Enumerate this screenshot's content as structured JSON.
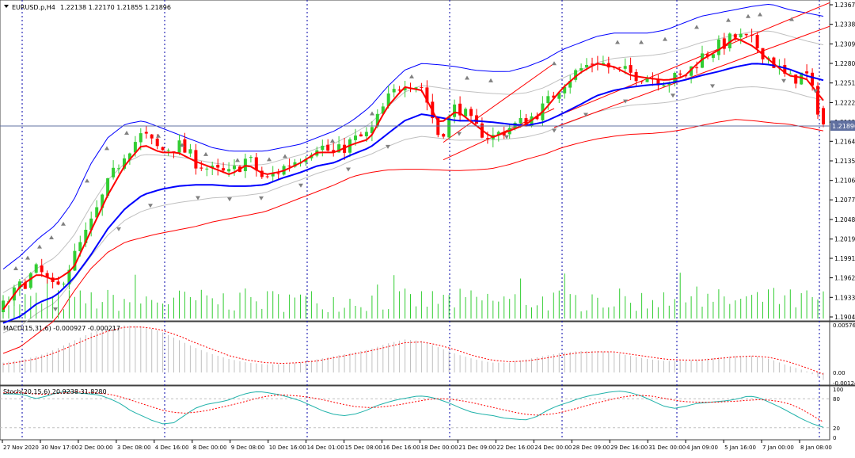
{
  "main": {
    "symbol_label": "EURUSD.p,H4",
    "ohlc_label": "1.22138 1.22170 1.21855 1.21896",
    "price_ticks": [
      "1.23670",
      "1.23380",
      "1.23090",
      "1.22800",
      "1.22510",
      "1.22220",
      "1.21930",
      "1.21645",
      "1.21355",
      "1.21065",
      "1.20777",
      "1.20485",
      "1.20195",
      "1.19910",
      "1.19620",
      "1.19330",
      "1.19040"
    ],
    "current_price": "1.21896"
  },
  "macd": {
    "label": "MACD(15,31,6) -0.000927 -0.000217",
    "ticks": [
      "0.005765",
      "0.00",
      "-0.00124"
    ]
  },
  "stoch": {
    "label": "Stoch(20,15,6) 20.9238 31.8280",
    "ticks": [
      "100",
      "80",
      "20",
      "0"
    ]
  },
  "time_axis": [
    "27 Nov 2020",
    "30 Nov 17:00",
    "2 Dec 00:00",
    "3 Dec 08:00",
    "4 Dec 16:00",
    "8 Dec 00:00",
    "9 Dec 08:00",
    "10 Dec 16:00",
    "14 Dec 01:00",
    "15 Dec 08:00",
    "16 Dec 16:00",
    "18 Dec 00:00",
    "21 Dec 09:00",
    "22 Dec 16:00",
    "24 Dec 00:00",
    "28 Dec 09:00",
    "29 Dec 16:00",
    "31 Dec 00:00",
    "4 Jan 09:00",
    "5 Jan 16:00",
    "7 Jan 00:00",
    "8 Jan 08:00"
  ],
  "colors": {
    "bull": "#32CD32",
    "bear": "#FF0000",
    "ma_fast": "#FF0000",
    "ma_slow": "#0000FF",
    "band_upper": "#0000FF",
    "band_lower": "#FF0000",
    "band_inner": "#C0C0C0",
    "volume": "#32CD32",
    "macd_hist": "#C0C0C0",
    "macd_signal": "#FF0000",
    "stoch_main": "#20B2AA",
    "stoch_signal": "#FF0000",
    "grid": "#0000AA",
    "price_line": "#6070A0"
  },
  "chart_data": [
    {
      "type": "candlestick",
      "name": "EURUSD.p,H4",
      "ylim": [
        1.1904,
        1.2367
      ],
      "y_ticks": [
        1.2367,
        1.2338,
        1.2309,
        1.228,
        1.2251,
        1.2222,
        1.2193,
        1.21645,
        1.21355,
        1.21065,
        1.20777,
        1.20485,
        1.20195,
        1.1991,
        1.1962,
        1.1933,
        1.1904
      ],
      "last": {
        "open": 1.22138,
        "high": 1.2217,
        "low": 1.21855,
        "close": 1.21896
      },
      "anchors_close": [
        1.192,
        1.195,
        1.1975,
        1.194,
        1.199,
        1.204,
        1.21,
        1.215,
        1.2175,
        1.215,
        1.216,
        1.2135,
        1.212,
        1.2115,
        1.214,
        1.2105,
        1.2125,
        1.214,
        1.216,
        1.2145,
        1.2165,
        1.2175,
        1.2225,
        1.2255,
        1.2245,
        1.217,
        1.222,
        1.2185,
        1.217,
        1.2185,
        1.2195,
        1.2215,
        1.225,
        1.227,
        1.2285,
        1.227,
        1.2265,
        1.226,
        1.2255,
        1.226,
        1.229,
        1.2305,
        1.232,
        1.231,
        1.2285,
        1.2255,
        1.2265,
        1.219
      ],
      "fast_ma_anchors": [
        1.1915,
        1.195,
        1.1968,
        1.1958,
        1.1975,
        1.203,
        1.2085,
        1.213,
        1.216,
        1.2148,
        1.2148,
        1.2135,
        1.2125,
        1.2115,
        1.213,
        1.2115,
        1.212,
        1.2132,
        1.2148,
        1.2148,
        1.216,
        1.2168,
        1.2215,
        1.2245,
        1.224,
        1.219,
        1.221,
        1.219,
        1.217,
        1.218,
        1.219,
        1.221,
        1.2242,
        1.2265,
        1.228,
        1.2275,
        1.2262,
        1.2258,
        1.2255,
        1.226,
        1.2285,
        1.23,
        1.2318,
        1.2305,
        1.2283,
        1.2262,
        1.2258,
        1.2225
      ],
      "slow_ma_anchors": [
        1.1895,
        1.1905,
        1.1925,
        1.1935,
        1.196,
        1.1995,
        1.2035,
        1.2065,
        1.2085,
        1.2093,
        1.2098,
        1.21,
        1.21,
        1.2098,
        1.2098,
        1.21,
        1.211,
        1.2118,
        1.2128,
        1.2133,
        1.2145,
        1.2155,
        1.2175,
        1.2195,
        1.2205,
        1.22,
        1.2195,
        1.2195,
        1.2193,
        1.219,
        1.2188,
        1.2193,
        1.2205,
        1.2218,
        1.2232,
        1.224,
        1.2245,
        1.2248,
        1.225,
        1.2255,
        1.2262,
        1.2268,
        1.2275,
        1.228,
        1.2278,
        1.2272,
        1.2262,
        1.2255
      ],
      "upper_band_anchors": [
        1.1975,
        1.1995,
        1.202,
        1.204,
        1.2075,
        1.213,
        1.217,
        1.219,
        1.2195,
        1.2185,
        1.2175,
        1.2165,
        1.2155,
        1.215,
        1.215,
        1.215,
        1.2155,
        1.216,
        1.217,
        1.218,
        1.2195,
        1.2215,
        1.2245,
        1.227,
        1.228,
        1.2278,
        1.2275,
        1.227,
        1.2268,
        1.2268,
        1.2275,
        1.2285,
        1.23,
        1.231,
        1.232,
        1.2325,
        1.2325,
        1.2325,
        1.233,
        1.234,
        1.235,
        1.2355,
        1.236,
        1.2365,
        1.2368,
        1.236,
        1.2355,
        1.235
      ],
      "lower_band_anchors": [
        1.185,
        1.186,
        1.188,
        1.19,
        1.194,
        1.1975,
        1.2,
        1.2015,
        1.2022,
        1.2028,
        1.2033,
        1.2038,
        1.2045,
        1.205,
        1.2055,
        1.206,
        1.207,
        1.208,
        1.209,
        1.21,
        1.2112,
        1.2118,
        1.2122,
        1.2123,
        1.2123,
        1.2122,
        1.2121,
        1.2122,
        1.2124,
        1.213,
        1.2138,
        1.2145,
        1.2155,
        1.2162,
        1.2168,
        1.2172,
        1.2175,
        1.2176,
        1.2178,
        1.2182,
        1.2188,
        1.2193,
        1.2197,
        1.2195,
        1.2192,
        1.219,
        1.2185,
        1.218
      ],
      "channel_lines": [
        {
          "from": {
            "index": 560,
            "price": 1.2137
          },
          "to": {
            "index": 700,
            "price": 1.2213
          }
        },
        {
          "from": {
            "index": 560,
            "price": 1.2163
          },
          "to": {
            "index": 700,
            "price": 1.228
          }
        },
        {
          "from": {
            "index": 700,
            "price": 1.2185
          },
          "to": {
            "index": 1048,
            "price": 1.2335
          }
        },
        {
          "from": {
            "index": 700,
            "price": 1.22
          },
          "to": {
            "index": 1048,
            "price": 1.237
          }
        }
      ]
    },
    {
      "type": "bar",
      "name": "Volume",
      "ylim": [
        0,
        1
      ]
    },
    {
      "type": "bar",
      "name": "MACD(15,31,6)",
      "ylim": [
        -0.00124,
        0.005765
      ],
      "main": -0.000927,
      "signal": -0.000217,
      "hist_anchors": [
        0.0012,
        0.0015,
        0.002,
        0.0028,
        0.0038,
        0.0048,
        0.0055,
        0.0057,
        0.0056,
        0.005,
        0.004,
        0.003,
        0.0022,
        0.0016,
        0.0012,
        0.001,
        0.001,
        0.0012,
        0.0016,
        0.002,
        0.0024,
        0.0028,
        0.0035,
        0.004,
        0.0038,
        0.003,
        0.0022,
        0.0016,
        0.0012,
        0.0012,
        0.0016,
        0.002,
        0.0024,
        0.0026,
        0.0026,
        0.0024,
        0.002,
        0.0016,
        0.0014,
        0.0014,
        0.0016,
        0.0018,
        0.002,
        0.002,
        0.0016,
        0.0008,
        0.0002,
        -0.0009
      ],
      "signal_anchors": [
        0.001,
        0.0013,
        0.0017,
        0.0024,
        0.0033,
        0.0042,
        0.005,
        0.0055,
        0.0055,
        0.0052,
        0.0045,
        0.0036,
        0.0028,
        0.002,
        0.0015,
        0.0012,
        0.0011,
        0.0012,
        0.0014,
        0.0018,
        0.0022,
        0.0026,
        0.0031,
        0.0036,
        0.0037,
        0.0033,
        0.0027,
        0.002,
        0.0015,
        0.0013,
        0.0014,
        0.0017,
        0.0021,
        0.0024,
        0.0025,
        0.0025,
        0.0022,
        0.0019,
        0.0016,
        0.0015,
        0.0015,
        0.0017,
        0.0019,
        0.002,
        0.0018,
        0.0013,
        0.0006,
        -0.0002
      ]
    },
    {
      "type": "line",
      "name": "Stoch(20,15,6)",
      "ylim": [
        0,
        100
      ],
      "y_ticks": [
        100,
        80,
        20,
        0
      ],
      "main": 20.9238,
      "signal": 31.828,
      "main_anchors": [
        90,
        90,
        88,
        80,
        85,
        92,
        95,
        92,
        90,
        88,
        80,
        70,
        55,
        45,
        35,
        28,
        30,
        45,
        60,
        68,
        72,
        76,
        85,
        92,
        95,
        92,
        88,
        82,
        75,
        65,
        55,
        48,
        45,
        48,
        55,
        65,
        72,
        78,
        82,
        86,
        84,
        78,
        70,
        60,
        52,
        48,
        45,
        40,
        38,
        36,
        42,
        55,
        65,
        72,
        80,
        86,
        90,
        94,
        96,
        92,
        85,
        75,
        65,
        60,
        64,
        70,
        72,
        74,
        76,
        80,
        86,
        82,
        72,
        62,
        50,
        38,
        28,
        21
      ],
      "signal_anchors": [
        92,
        93,
        92,
        90,
        89,
        91,
        93,
        94,
        93,
        92,
        89,
        84,
        77,
        70,
        63,
        56,
        52,
        50,
        52,
        55,
        60,
        65,
        70,
        76,
        82,
        86,
        88,
        87,
        85,
        82,
        78,
        73,
        68,
        64,
        62,
        62,
        64,
        67,
        71,
        75,
        79,
        80,
        79,
        76,
        72,
        67,
        62,
        57,
        52,
        48,
        46,
        47,
        50,
        55,
        61,
        67,
        73,
        78,
        83,
        86,
        87,
        85,
        81,
        77,
        74,
        73,
        73,
        73,
        74,
        75,
        77,
        78,
        77,
        74,
        68,
        58,
        45,
        32
      ]
    }
  ]
}
